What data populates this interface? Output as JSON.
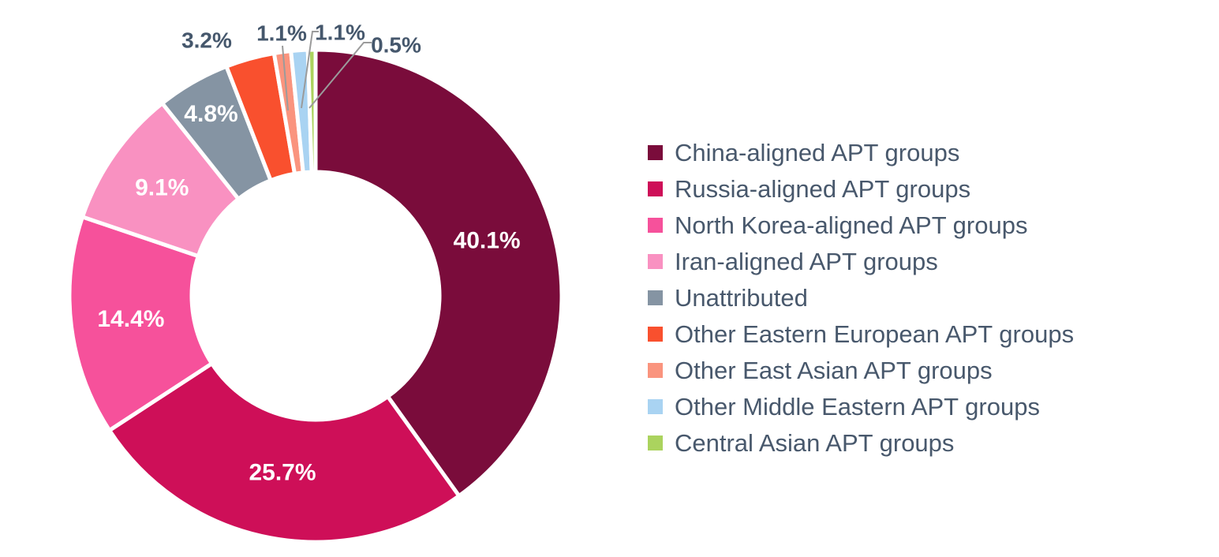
{
  "chart_data": {
    "type": "pie",
    "subtype": "donut",
    "title": "",
    "unit": "%",
    "legend_position": "right",
    "background": "#FFFFFF",
    "inside_label_color": "#FFFFFF",
    "callout_label_color": "#45576C",
    "legend_text_color": "#48586C",
    "leader_line_color": "#9B9B9B",
    "start_angle_deg": 0,
    "direction": "clockwise",
    "series": [
      {
        "label": "China-aligned APT groups",
        "value": 40.1,
        "value_label": "40.1%",
        "color": "#7A0C3B"
      },
      {
        "label": "Russia-aligned APT groups",
        "value": 25.7,
        "value_label": "25.7%",
        "color": "#CE0F58"
      },
      {
        "label": "North Korea-aligned APT groups",
        "value": 14.4,
        "value_label": "14.4%",
        "color": "#F6519B"
      },
      {
        "label": "Iran-aligned APT groups",
        "value": 9.1,
        "value_label": "9.1%",
        "color": "#F991C1"
      },
      {
        "label": "Unattributed",
        "value": 4.8,
        "value_label": "4.8%",
        "color": "#8594A3"
      },
      {
        "label": "Other Eastern European APT groups",
        "value": 3.2,
        "value_label": "3.2%",
        "color": "#F9502E"
      },
      {
        "label": "Other East Asian APT groups",
        "value": 1.1,
        "value_label": "1.1%",
        "color": "#FA947E"
      },
      {
        "label": "Other Middle Eastern APT groups",
        "value": 1.1,
        "value_label": "1.1%",
        "color": "#A9D3F2"
      },
      {
        "label": "Central Asian APT groups",
        "value": 0.5,
        "value_label": "0.5%",
        "color": "#ABD35E"
      }
    ]
  }
}
